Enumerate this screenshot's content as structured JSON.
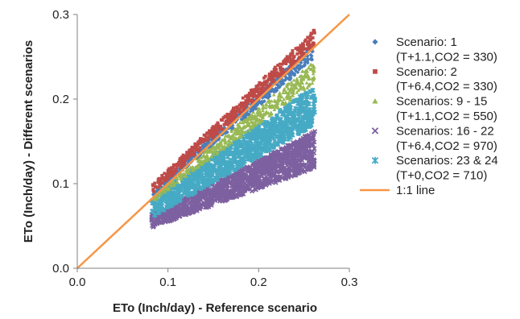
{
  "chart_data": {
    "type": "scatter",
    "title": "",
    "xlabel": "ETo (Inch/day) - Reference scenario",
    "ylabel": "ETo (Inch/day) - Different scenarios",
    "xlim": [
      0,
      0.3
    ],
    "ylim": [
      0,
      0.3
    ],
    "x_ticks": [
      "0.0",
      "0.1",
      "0.2",
      "0.3"
    ],
    "y_ticks": [
      "0.0",
      "0.1",
      "0.2",
      "0.3"
    ],
    "grid": false,
    "legend_position": "right",
    "series": [
      {
        "name_lines": [
          "Scenario: 1",
          "(T+1.1,CO2 = 330)"
        ],
        "marker": "diamond",
        "color": "#4a7ebb",
        "x_range": [
          0.082,
          0.26
        ],
        "y_low": [
          0.085,
          0.246
        ],
        "y_high": [
          0.09,
          0.265
        ]
      },
      {
        "name_lines": [
          "Scenario: 2",
          "(T+6.4,CO2 = 330)"
        ],
        "marker": "square",
        "color": "#be4b48",
        "x_range": [
          0.082,
          0.262
        ],
        "y_low": [
          0.088,
          0.262
        ],
        "y_high": [
          0.098,
          0.283
        ]
      },
      {
        "name_lines": [
          "Scenarios: 9 - 15",
          "(T+1.1,CO2 = 550)"
        ],
        "marker": "triangle",
        "color": "#98b954",
        "x_range": [
          0.082,
          0.262
        ],
        "y_low": [
          0.078,
          0.22
        ],
        "y_high": [
          0.087,
          0.245
        ]
      },
      {
        "name_lines": [
          "Scenarios: 16 - 22",
          "(T+6.4,CO2 = 970)"
        ],
        "marker": "x",
        "color": "#7d60a0",
        "x_range": [
          0.082,
          0.262
        ],
        "y_low": [
          0.048,
          0.118
        ],
        "y_high": [
          0.065,
          0.162
        ]
      },
      {
        "name_lines": [
          "Scenarios: 23 & 24",
          "(T+0,CO2 = 710)"
        ],
        "marker": "star",
        "color": "#46aac5",
        "x_range": [
          0.082,
          0.262
        ],
        "y_low": [
          0.06,
          0.17
        ],
        "y_high": [
          0.083,
          0.215
        ]
      }
    ],
    "reference_line": {
      "name": "1:1 line",
      "color": "#f79646",
      "x": [
        0,
        0.3
      ],
      "y": [
        0,
        0.3
      ]
    }
  }
}
